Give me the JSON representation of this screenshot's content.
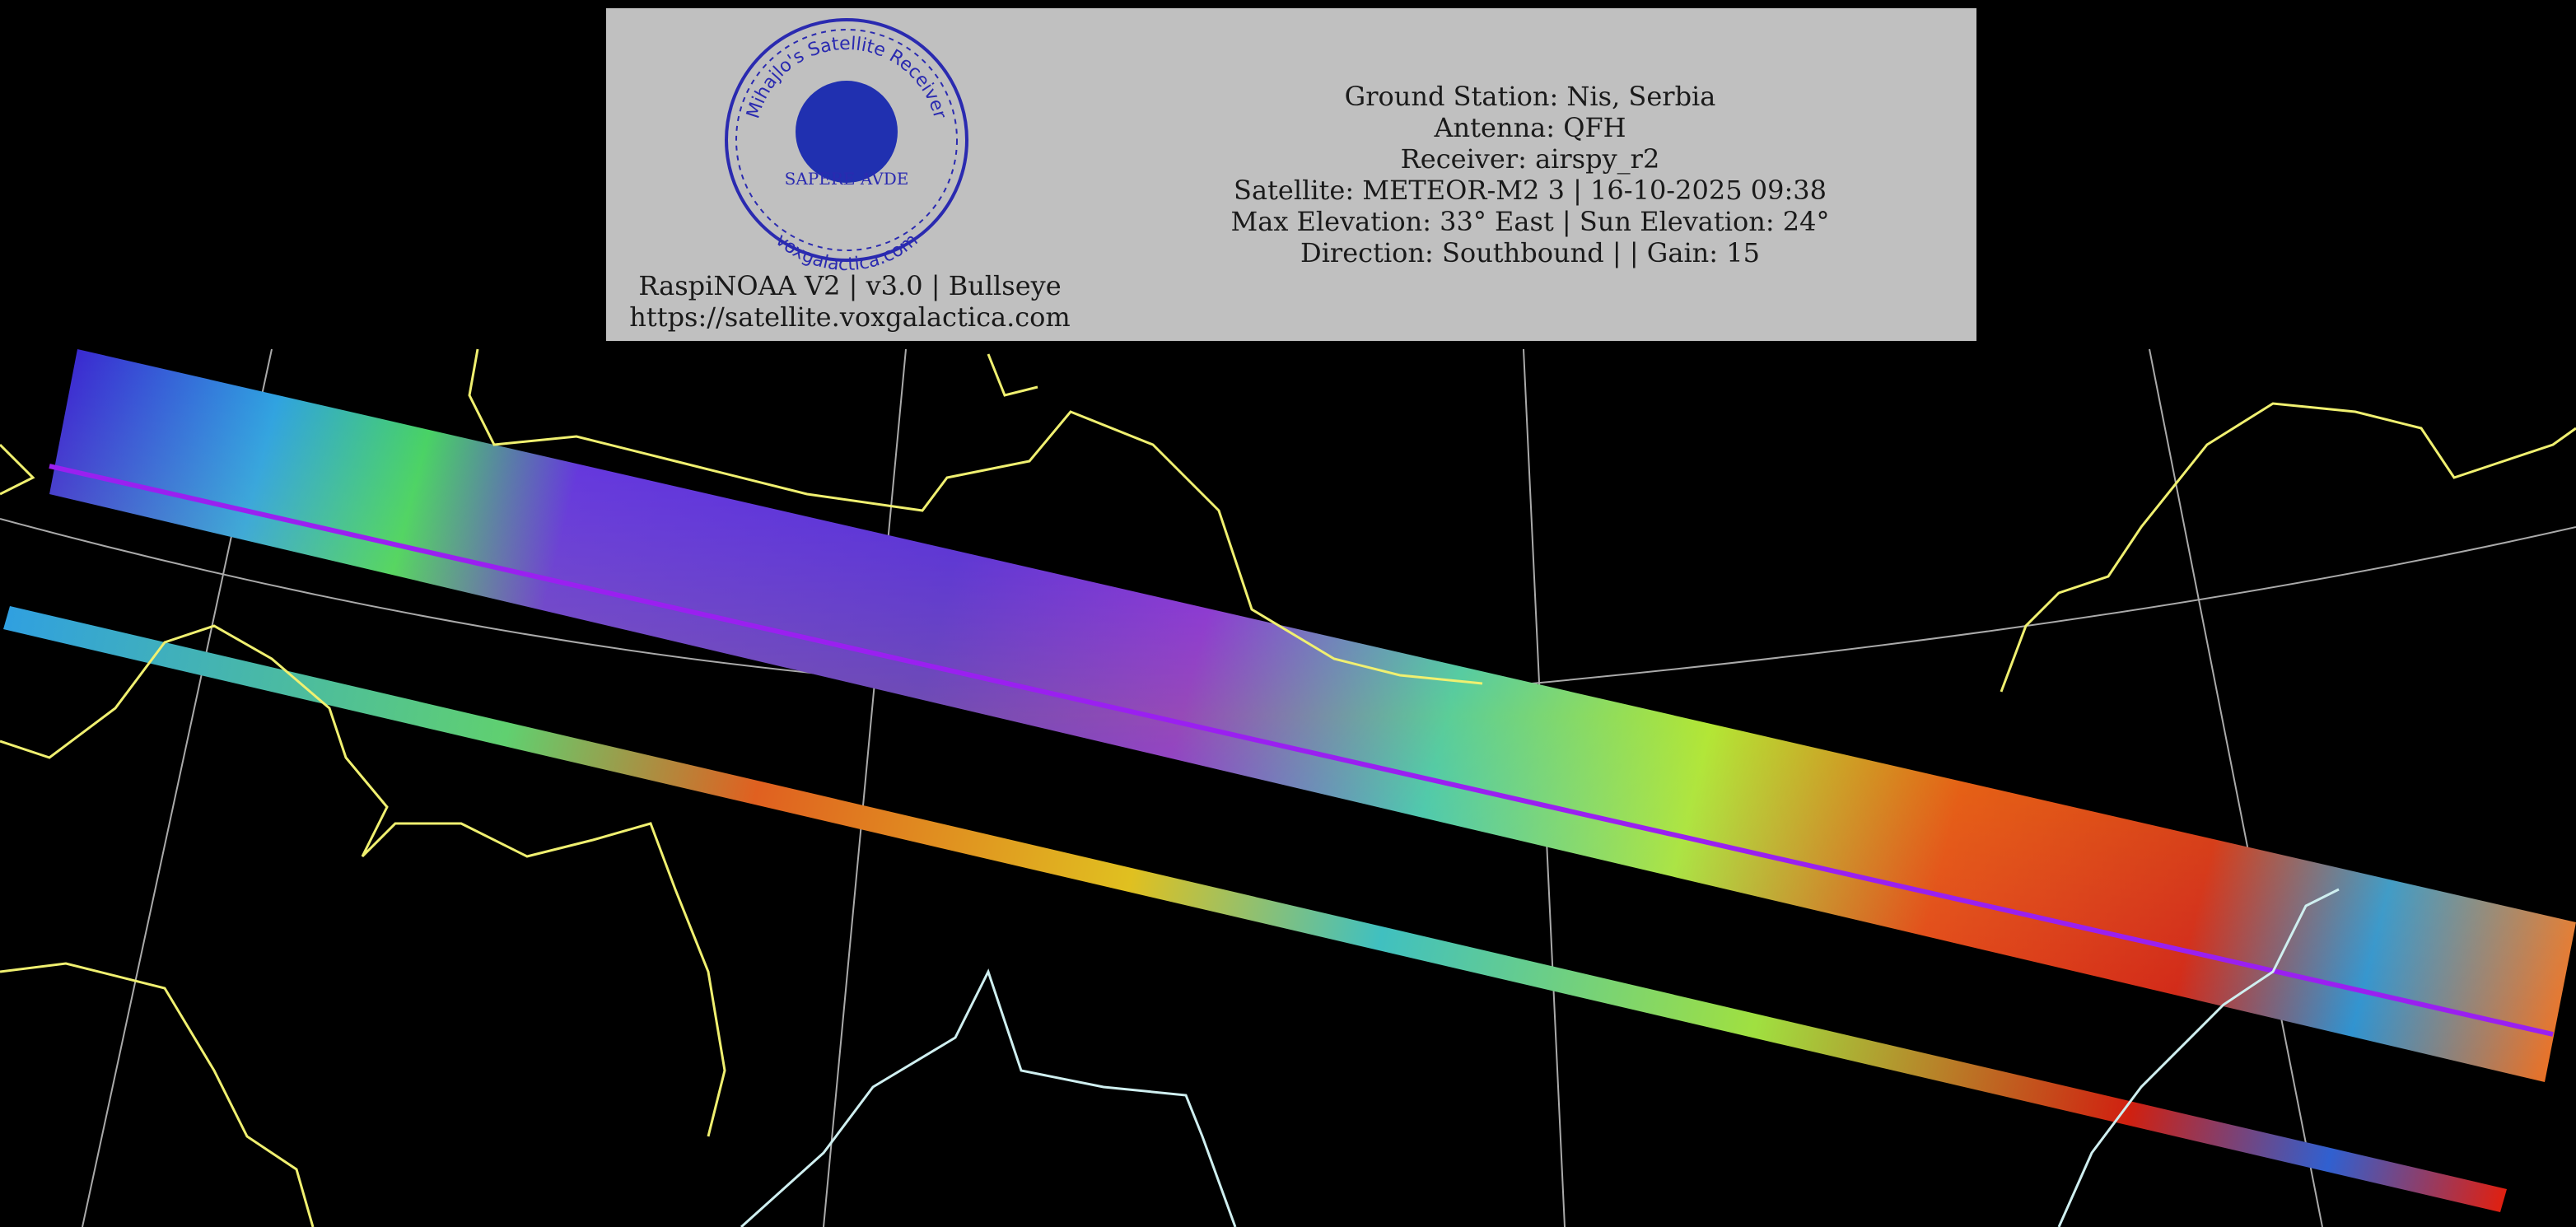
{
  "logo": {
    "ring_top": "Mihajlo's Satellite Receiver",
    "motto": "SAPERE AVDE",
    "ring_bottom": "voxgalactica.com"
  },
  "station": {
    "line1": "RaspiNOAA V2 | v3.0 | Bullseye",
    "line2": "https://satellite.voxgalactica.com"
  },
  "info": [
    "Ground Station: Nis, Serbia",
    "Antenna: QFH",
    "Receiver: airspy_r2",
    "Satellite: METEOR-M2 3 | 16-10-2025 09:38",
    "Max Elevation: 33° East | Sun Elevation: 24°",
    "Direction: Southbound | | Gain: 15"
  ]
}
